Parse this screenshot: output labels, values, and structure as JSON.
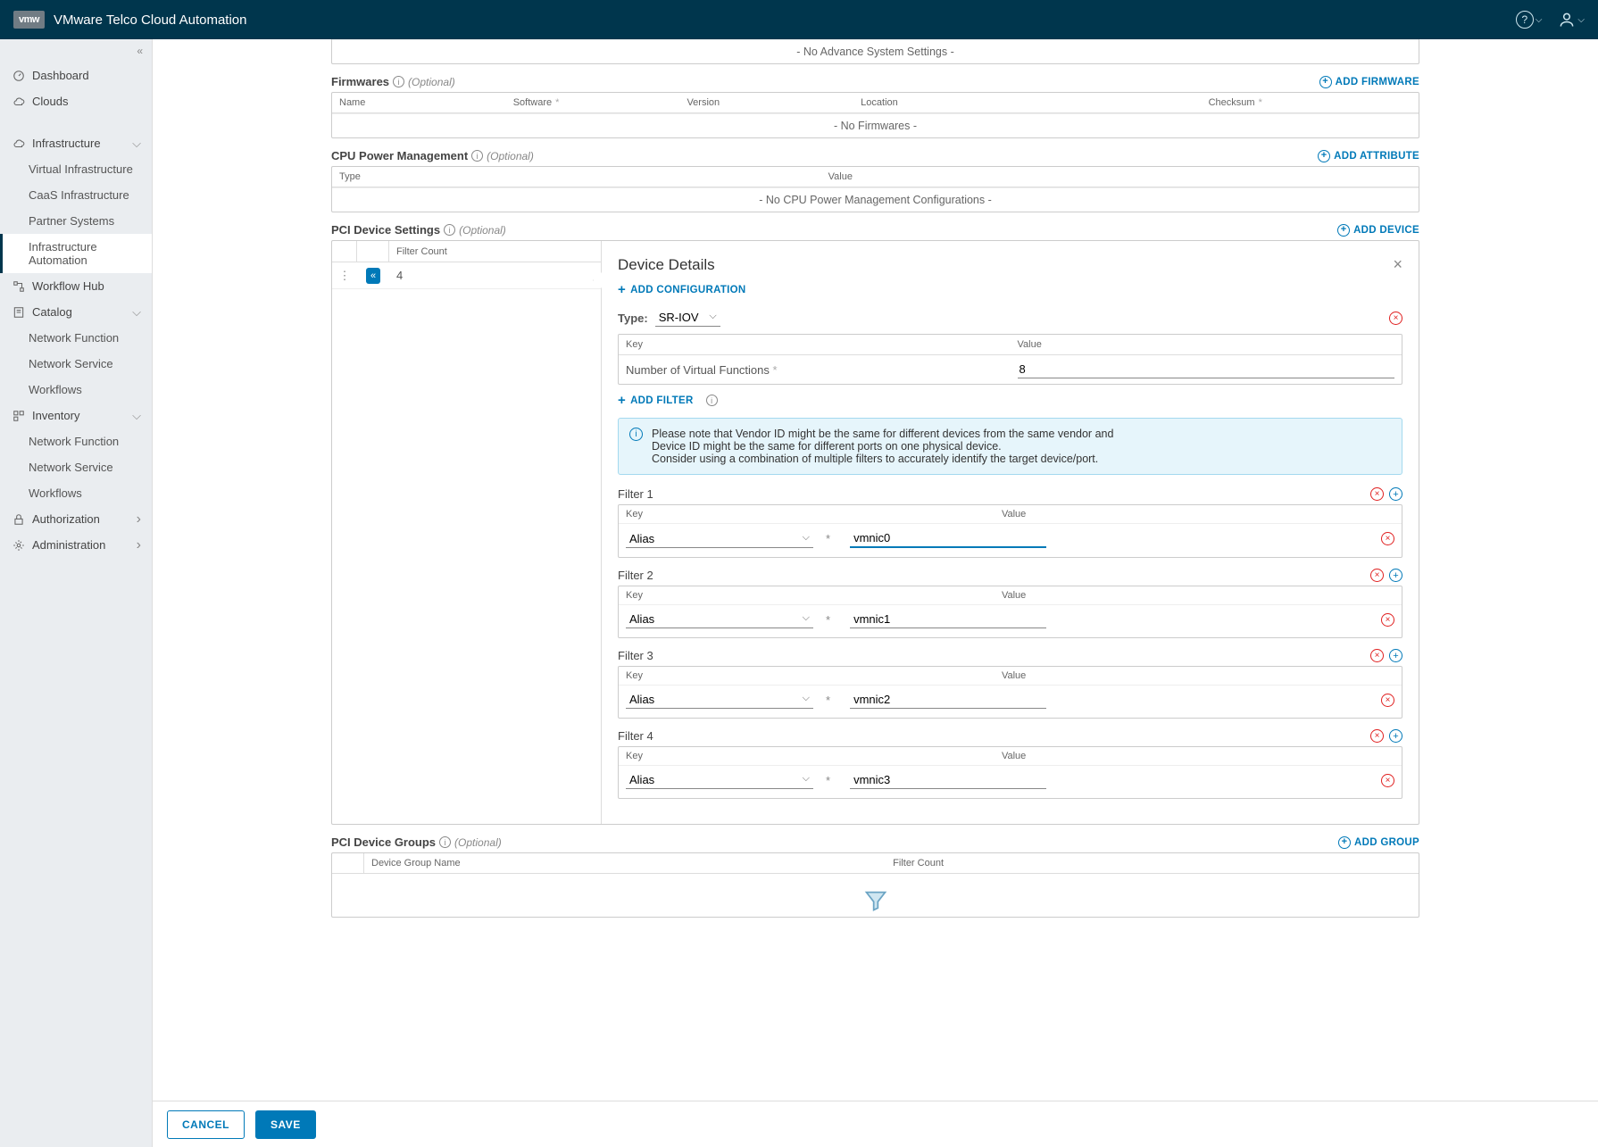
{
  "app_title": "VMware Telco Cloud Automation",
  "logo_text": "vmw",
  "nav": {
    "dashboard": "Dashboard",
    "clouds": "Clouds",
    "infrastructure": "Infrastructure",
    "virtual_infra": "Virtual Infrastructure",
    "caas_infra": "CaaS Infrastructure",
    "partner_systems": "Partner Systems",
    "infra_automation": "Infrastructure Automation",
    "workflow_hub": "Workflow Hub",
    "catalog": "Catalog",
    "catalog_nf": "Network Function",
    "catalog_ns": "Network Service",
    "catalog_wf": "Workflows",
    "inventory": "Inventory",
    "inv_nf": "Network Function",
    "inv_ns": "Network Service",
    "inv_wf": "Workflows",
    "authorization": "Authorization",
    "administration": "Administration"
  },
  "sections": {
    "advance_empty": "- No Advance System Settings -",
    "firmwares": "Firmwares",
    "add_firmware": "ADD FIRMWARE",
    "fw_cols": {
      "name": "Name",
      "software": "Software",
      "version": "Version",
      "location": "Location",
      "checksum": "Checksum"
    },
    "fw_empty": "- No Firmwares -",
    "cpu": "CPU Power Management",
    "add_attribute": "ADD ATTRIBUTE",
    "cpu_cols": {
      "type": "Type",
      "value": "Value"
    },
    "cpu_empty": "- No CPU Power Management Configurations -",
    "pci": "PCI Device Settings",
    "add_device": "ADD DEVICE",
    "filter_count_hdr": "Filter Count",
    "filter_count_val": "4",
    "pci_groups": "PCI Device Groups",
    "add_group": "ADD GROUP",
    "group_cols": {
      "name": "Device Group Name",
      "fc": "Filter Count"
    },
    "optional": "(Optional)"
  },
  "device": {
    "title": "Device Details",
    "add_config": "ADD CONFIGURATION",
    "type_label": "Type:",
    "type_value": "SR-IOV",
    "kv_key_hdr": "Key",
    "kv_val_hdr": "Value",
    "vf_label": "Number of Virtual Functions",
    "vf_value": "8",
    "add_filter": "ADD FILTER",
    "info_l1": "Please note that Vendor ID might be the same for different devices from the same vendor and",
    "info_l2": "Device ID might be the same for different ports on one physical device.",
    "info_l3": "Consider using a combination of multiple filters to accurately identify the target device/port.",
    "filters": [
      {
        "title": "Filter 1",
        "key": "Alias",
        "value": "vmnic0",
        "focused": true
      },
      {
        "title": "Filter 2",
        "key": "Alias",
        "value": "vmnic1",
        "focused": false
      },
      {
        "title": "Filter 3",
        "key": "Alias",
        "value": "vmnic2",
        "focused": false
      },
      {
        "title": "Filter 4",
        "key": "Alias",
        "value": "vmnic3",
        "focused": false
      }
    ],
    "filter_key_hdr": "Key",
    "filter_val_hdr": "Value"
  },
  "footer": {
    "cancel": "CANCEL",
    "save": "SAVE"
  },
  "colors": {
    "primary": "#0079b8",
    "header_bg": "#00364d",
    "danger": "#e02020",
    "sidebar_bg": "#eaedf0",
    "info_bg": "#e6f5fb"
  }
}
